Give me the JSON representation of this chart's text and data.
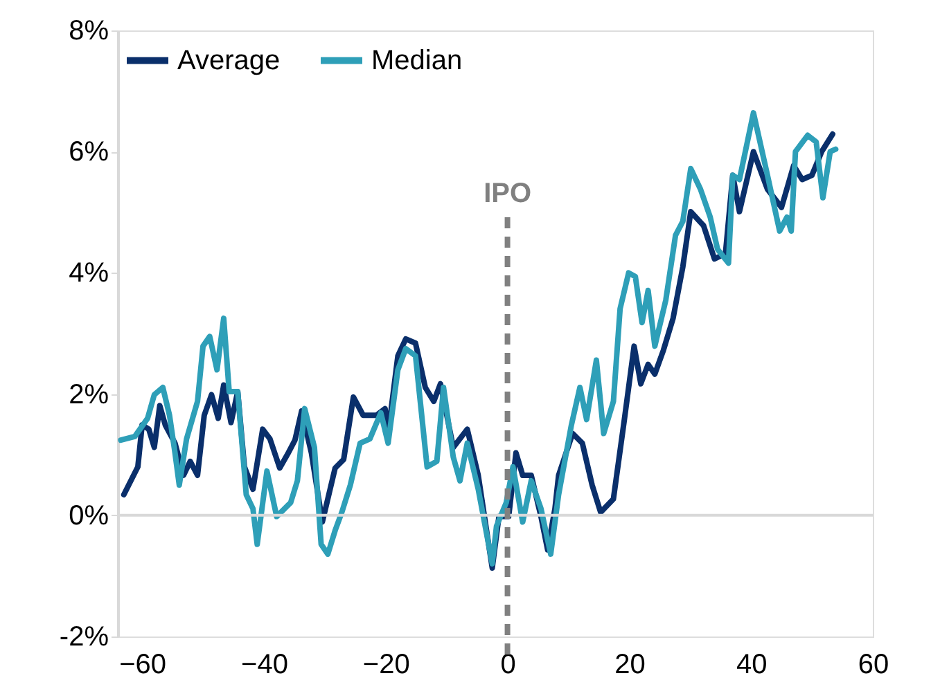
{
  "chart_data": {
    "type": "line",
    "xlim": [
      -64,
      60
    ],
    "xticks": [
      -60,
      -40,
      -20,
      0,
      20,
      40,
      60
    ],
    "ylim": [
      -2,
      8
    ],
    "yticks": [
      {
        "value": -2,
        "label": "-2%"
      },
      {
        "value": 0,
        "label": "0%"
      },
      {
        "value": 2,
        "label": "2%"
      },
      {
        "value": 4,
        "label": "4%"
      },
      {
        "value": 6,
        "label": "6%"
      },
      {
        "value": 8,
        "label": "8%"
      }
    ],
    "grid": false,
    "legend": "top left",
    "line_style": "solid",
    "marker": "none",
    "ref_lines": [
      {
        "axis": "x",
        "value": 0,
        "label": "IPO",
        "color": "#808080",
        "line_style": "dashed"
      },
      {
        "axis": "y",
        "value": 0,
        "label": null,
        "color": "#d9d9d9",
        "line_style": "solid"
      }
    ],
    "series": [
      {
        "name": "Average",
        "color": "#0a2f6b",
        "x": [
          -63.0,
          -60.7,
          -60.0,
          -58.9,
          -58.0,
          -57.1,
          -56.2,
          -54.6,
          -53.2,
          -52.1,
          -50.9,
          -49.8,
          -48.6,
          -47.5,
          -46.6,
          -45.4,
          -44.3,
          -43.2,
          -41.8,
          -40.2,
          -39.0,
          -37.4,
          -36.1,
          -34.9,
          -33.8,
          -32.2,
          -30.4,
          -28.3,
          -26.9,
          -25.3,
          -23.7,
          -21.5,
          -20.1,
          -19.6,
          -18.0,
          -16.7,
          -15.1,
          -13.5,
          -12.1,
          -11.0,
          -8.9,
          -6.6,
          -4.8,
          -2.5,
          -1.4,
          0.2,
          1.4,
          2.5,
          3.9,
          5.5,
          6.6,
          7.8,
          8.4,
          10.7,
          12.3,
          13.9,
          15.3,
          17.4,
          19.2,
          20.8,
          21.9,
          23.1,
          24.2,
          25.6,
          27.2,
          28.8,
          30.1,
          32.2,
          34.0,
          35.8,
          37.0,
          38.1,
          40.4,
          42.7,
          45.0,
          47.0,
          48.4,
          50.0,
          51.6,
          53.4
        ],
        "values": [
          0.34,
          0.8,
          1.49,
          1.42,
          1.12,
          1.81,
          1.49,
          1.19,
          0.66,
          0.89,
          0.66,
          1.65,
          1.99,
          1.6,
          2.15,
          1.53,
          2.04,
          0.8,
          0.43,
          1.42,
          1.26,
          0.78,
          1.01,
          1.24,
          1.72,
          1.03,
          -0.11,
          0.78,
          0.92,
          1.95,
          1.65,
          1.65,
          1.76,
          1.35,
          2.63,
          2.91,
          2.84,
          2.11,
          1.88,
          2.17,
          1.12,
          1.42,
          0.66,
          -0.87,
          -0.02,
          -0.02,
          1.03,
          0.66,
          0.66,
          -0.02,
          -0.57,
          0.11,
          0.66,
          1.35,
          1.19,
          0.5,
          0.05,
          0.27,
          1.58,
          2.79,
          2.17,
          2.49,
          2.33,
          2.72,
          3.25,
          4.1,
          5.01,
          4.78,
          4.23,
          4.32,
          5.61,
          5.01,
          6.0,
          5.38,
          5.08,
          5.77,
          5.54,
          5.61,
          6.0,
          6.29
        ]
      },
      {
        "name": "Median",
        "color": "#2e9fb8",
        "x": [
          -63.5,
          -61.2,
          -59.1,
          -58.0,
          -56.6,
          -55.5,
          -54.6,
          -53.9,
          -52.7,
          -50.9,
          -50.0,
          -48.9,
          -47.7,
          -46.6,
          -45.7,
          -44.3,
          -42.9,
          -41.8,
          -41.1,
          -39.5,
          -37.9,
          -35.6,
          -34.5,
          -33.3,
          -31.7,
          -30.6,
          -29.5,
          -28.3,
          -27.2,
          -25.8,
          -24.2,
          -22.6,
          -20.8,
          -19.6,
          -18.0,
          -16.7,
          -15.1,
          -13.2,
          -11.6,
          -10.5,
          -8.9,
          -7.8,
          -6.6,
          -4.8,
          -2.5,
          -1.8,
          -0.2,
          0.9,
          2.5,
          3.9,
          5.5,
          7.1,
          8.4,
          10.5,
          11.9,
          13.0,
          14.6,
          15.8,
          17.4,
          18.5,
          19.9,
          21.0,
          22.1,
          23.1,
          24.2,
          26.0,
          27.6,
          28.8,
          30.1,
          31.7,
          33.3,
          34.5,
          36.3,
          37.0,
          38.1,
          40.4,
          42.7,
          44.7,
          45.9,
          46.6,
          47.3,
          49.3,
          50.7,
          51.8,
          53.0,
          53.9
        ],
        "values": [
          1.24,
          1.3,
          1.6,
          1.99,
          2.11,
          1.65,
          1.03,
          0.5,
          1.26,
          1.88,
          2.79,
          2.95,
          2.4,
          3.25,
          2.04,
          2.04,
          0.34,
          0.11,
          -0.48,
          0.73,
          -0.02,
          0.21,
          0.57,
          1.76,
          1.12,
          -0.48,
          -0.64,
          -0.25,
          0.05,
          0.5,
          1.19,
          1.26,
          1.69,
          1.19,
          2.4,
          2.75,
          2.63,
          0.8,
          0.89,
          2.11,
          0.96,
          0.57,
          1.19,
          0.43,
          -0.8,
          -0.18,
          0.21,
          0.8,
          -0.11,
          0.57,
          0.11,
          -0.64,
          0.34,
          1.49,
          2.11,
          1.58,
          2.56,
          1.35,
          1.88,
          3.41,
          4.0,
          3.94,
          3.18,
          3.71,
          2.79,
          3.55,
          4.62,
          4.85,
          5.72,
          5.38,
          4.92,
          4.39,
          4.16,
          5.61,
          5.54,
          6.64,
          5.61,
          4.69,
          4.92,
          4.69,
          6.0,
          6.27,
          6.16,
          5.24,
          6.0,
          6.04
        ]
      }
    ]
  }
}
